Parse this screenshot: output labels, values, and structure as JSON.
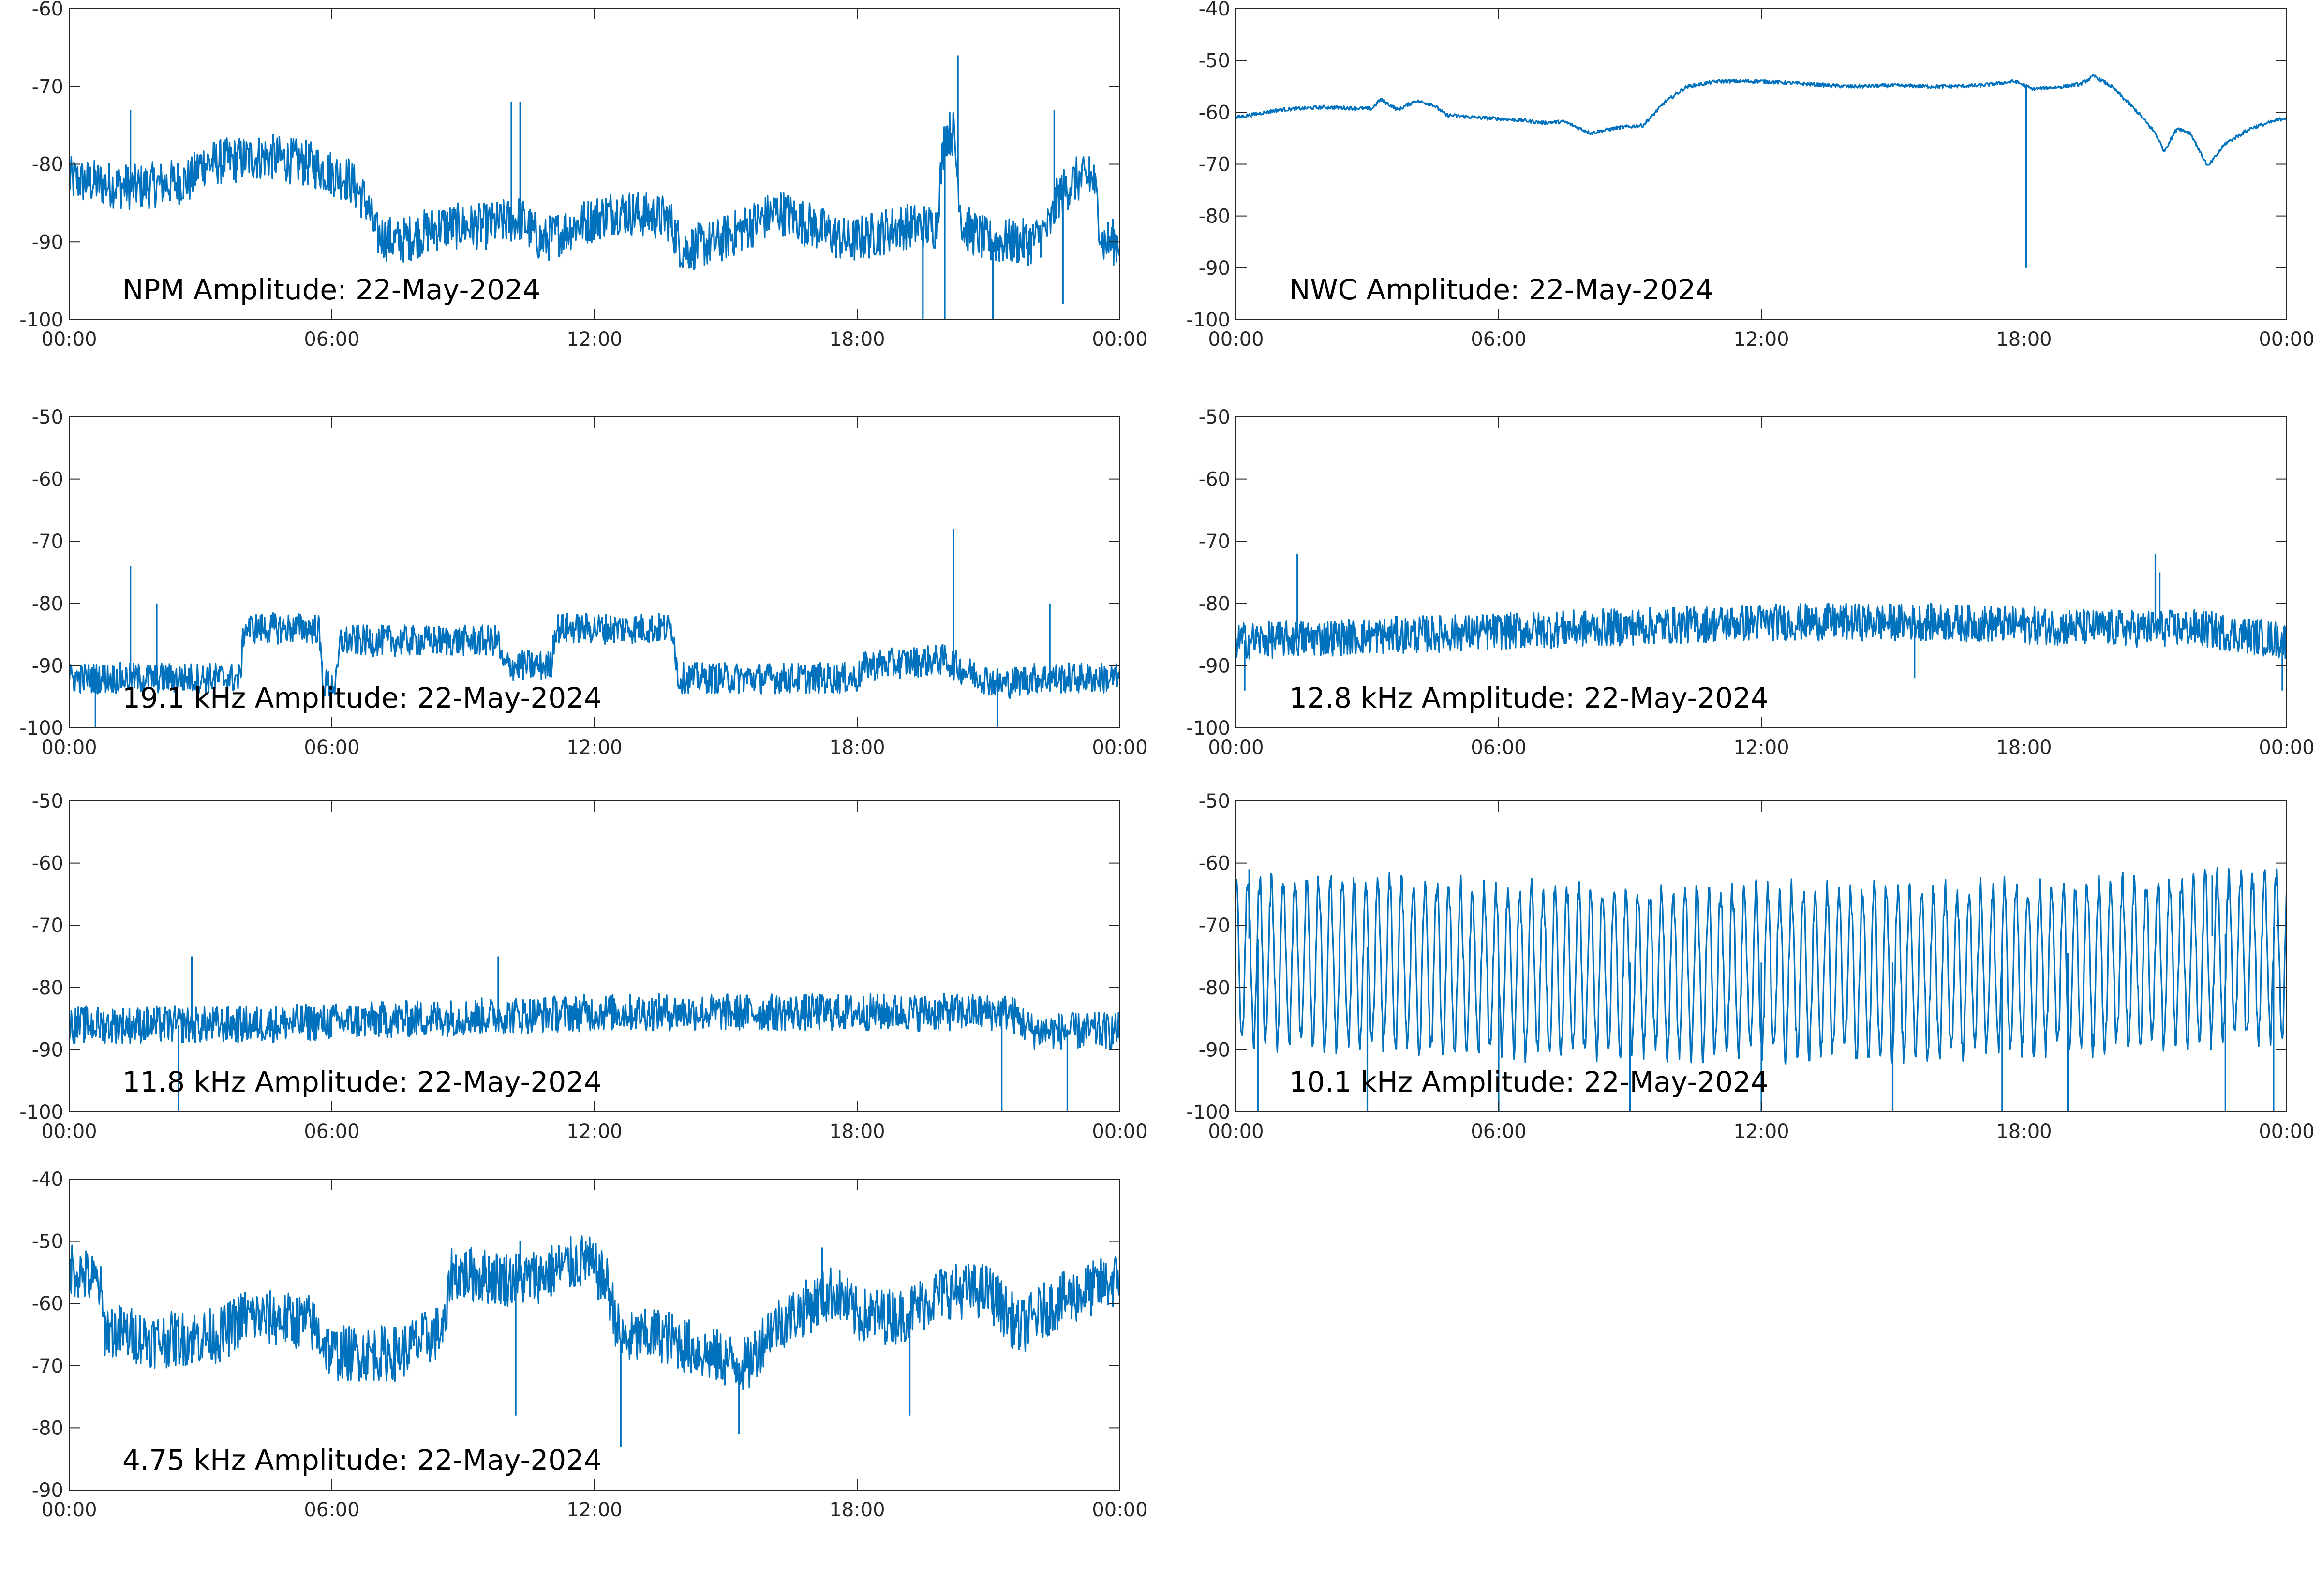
{
  "figure": {
    "series_color": "#0072BD",
    "axis_color": "#262626"
  },
  "chart_data": [
    {
      "type": "line",
      "title": "NPM Amplitude: 22-May-2024",
      "xlabel": "",
      "ylabel": "",
      "xticks": [
        "00:00",
        "06:00",
        "12:00",
        "18:00",
        "00:00"
      ],
      "yticks": [
        "-60",
        "-70",
        "-80",
        "-90",
        "-100"
      ],
      "ylim": [
        -100,
        -60
      ],
      "xlim_hours": [
        0,
        24
      ],
      "grid": false,
      "title_placement": "bottom-left inside axes",
      "series": [
        {
          "noise": 3.0,
          "spikes": [
            [
              1.4,
              -73
            ],
            [
              10.1,
              -72
            ],
            [
              10.3,
              -72
            ],
            [
              20.1,
              -77
            ],
            [
              20.3,
              -66
            ],
            [
              22.5,
              -73
            ],
            [
              23.3,
              -79
            ]
          ],
          "dips": [
            [
              19.5,
              -100
            ],
            [
              20.0,
              -100
            ],
            [
              21.1,
              -100
            ],
            [
              22.7,
              -98
            ]
          ],
          "points": [
            {
              "x": 0,
              "y": -82
            },
            {
              "x": 1.5,
              "y": -83
            },
            {
              "x": 2.8,
              "y": -82
            },
            {
              "x": 3.0,
              "y": -80
            },
            {
              "x": 4.5,
              "y": -79
            },
            {
              "x": 5.5,
              "y": -80
            },
            {
              "x": 6.4,
              "y": -82
            },
            {
              "x": 6.8,
              "y": -85
            },
            {
              "x": 7.0,
              "y": -89
            },
            {
              "x": 7.5,
              "y": -90
            },
            {
              "x": 8.5,
              "y": -88
            },
            {
              "x": 9.5,
              "y": -88
            },
            {
              "x": 10.3,
              "y": -87
            },
            {
              "x": 10.8,
              "y": -90
            },
            {
              "x": 11.5,
              "y": -88
            },
            {
              "x": 12.5,
              "y": -86
            },
            {
              "x": 13.7,
              "y": -87
            },
            {
              "x": 14.0,
              "y": -91
            },
            {
              "x": 14.8,
              "y": -90
            },
            {
              "x": 15.5,
              "y": -88
            },
            {
              "x": 16.2,
              "y": -86
            },
            {
              "x": 17.0,
              "y": -88
            },
            {
              "x": 17.8,
              "y": -90
            },
            {
              "x": 19.0,
              "y": -88
            },
            {
              "x": 19.8,
              "y": -88
            },
            {
              "x": 20.0,
              "y": -76
            },
            {
              "x": 20.2,
              "y": -76
            },
            {
              "x": 20.4,
              "y": -88
            },
            {
              "x": 21.0,
              "y": -90
            },
            {
              "x": 22.0,
              "y": -90
            },
            {
              "x": 22.4,
              "y": -88
            },
            {
              "x": 22.6,
              "y": -84
            },
            {
              "x": 23.0,
              "y": -82
            },
            {
              "x": 23.4,
              "y": -82
            },
            {
              "x": 23.6,
              "y": -90
            },
            {
              "x": 24,
              "y": -90
            }
          ]
        }
      ]
    },
    {
      "type": "line",
      "title": "NWC Amplitude: 22-May-2024",
      "xlabel": "",
      "ylabel": "",
      "xticks": [
        "00:00",
        "06:00",
        "12:00",
        "18:00",
        "00:00"
      ],
      "yticks": [
        "-40",
        "-50",
        "-60",
        "-70",
        "-80",
        "-90",
        "-100"
      ],
      "ylim": [
        -100,
        -40
      ],
      "xlim_hours": [
        0,
        24
      ],
      "grid": false,
      "title_placement": "bottom-left inside axes",
      "series": [
        {
          "noise": 0.35,
          "spikes": [],
          "dips": [
            [
              18.05,
              -90
            ]
          ],
          "points": [
            {
              "x": 0,
              "y": -61
            },
            {
              "x": 1.0,
              "y": -59.5
            },
            {
              "x": 2.0,
              "y": -59
            },
            {
              "x": 3.1,
              "y": -59.3
            },
            {
              "x": 3.3,
              "y": -57.5
            },
            {
              "x": 3.7,
              "y": -59.5
            },
            {
              "x": 4.1,
              "y": -57.8
            },
            {
              "x": 4.5,
              "y": -58.5
            },
            {
              "x": 4.8,
              "y": -60.5
            },
            {
              "x": 5.5,
              "y": -61
            },
            {
              "x": 6.5,
              "y": -61.5
            },
            {
              "x": 7.0,
              "y": -62
            },
            {
              "x": 7.5,
              "y": -61.8
            },
            {
              "x": 8.1,
              "y": -64
            },
            {
              "x": 8.7,
              "y": -63
            },
            {
              "x": 9.3,
              "y": -62.5
            },
            {
              "x": 9.8,
              "y": -58
            },
            {
              "x": 10.3,
              "y": -55
            },
            {
              "x": 11.0,
              "y": -54
            },
            {
              "x": 12.0,
              "y": -54
            },
            {
              "x": 13.0,
              "y": -54.5
            },
            {
              "x": 14.0,
              "y": -55
            },
            {
              "x": 15.0,
              "y": -54.8
            },
            {
              "x": 16.0,
              "y": -55
            },
            {
              "x": 17.0,
              "y": -54.8
            },
            {
              "x": 17.8,
              "y": -54
            },
            {
              "x": 18.2,
              "y": -55.5
            },
            {
              "x": 18.9,
              "y": -55
            },
            {
              "x": 19.3,
              "y": -54.5
            },
            {
              "x": 19.6,
              "y": -53
            },
            {
              "x": 20.0,
              "y": -55
            },
            {
              "x": 20.6,
              "y": -60
            },
            {
              "x": 21.0,
              "y": -64
            },
            {
              "x": 21.2,
              "y": -67.5
            },
            {
              "x": 21.5,
              "y": -63
            },
            {
              "x": 21.8,
              "y": -64
            },
            {
              "x": 22.2,
              "y": -70.5
            },
            {
              "x": 22.6,
              "y": -66
            },
            {
              "x": 23.2,
              "y": -63
            },
            {
              "x": 24,
              "y": -61
            }
          ]
        }
      ]
    },
    {
      "type": "line",
      "title": "19.1 kHz Amplitude: 22-May-2024",
      "xlabel": "",
      "ylabel": "",
      "xticks": [
        "00:00",
        "06:00",
        "12:00",
        "18:00",
        "00:00"
      ],
      "yticks": [
        "-50",
        "-60",
        "-70",
        "-80",
        "-90",
        "-100"
      ],
      "ylim": [
        -100,
        -50
      ],
      "xlim_hours": [
        0,
        24
      ],
      "grid": false,
      "title_placement": "bottom-left inside axes",
      "series": [
        {
          "noise": 2.5,
          "spikes": [
            [
              1.4,
              -74
            ],
            [
              2.0,
              -80
            ],
            [
              4.7,
              -82
            ],
            [
              20.2,
              -68
            ],
            [
              22.4,
              -80
            ]
          ],
          "dips": [
            [
              0.6,
              -100
            ],
            [
              21.2,
              -100
            ]
          ],
          "points": [
            {
              "x": 0,
              "y": -92
            },
            {
              "x": 3.9,
              "y": -92
            },
            {
              "x": 4.0,
              "y": -84
            },
            {
              "x": 5.7,
              "y": -84
            },
            {
              "x": 5.8,
              "y": -93
            },
            {
              "x": 6.1,
              "y": -93
            },
            {
              "x": 6.2,
              "y": -86
            },
            {
              "x": 9.8,
              "y": -86
            },
            {
              "x": 9.9,
              "y": -90
            },
            {
              "x": 11.0,
              "y": -90
            },
            {
              "x": 11.1,
              "y": -84
            },
            {
              "x": 13.8,
              "y": -84
            },
            {
              "x": 13.9,
              "y": -92
            },
            {
              "x": 18.0,
              "y": -92
            },
            {
              "x": 18.2,
              "y": -90
            },
            {
              "x": 20.0,
              "y": -89
            },
            {
              "x": 20.5,
              "y": -91
            },
            {
              "x": 21.3,
              "y": -93
            },
            {
              "x": 22.0,
              "y": -92
            },
            {
              "x": 24,
              "y": -92
            }
          ]
        }
      ]
    },
    {
      "type": "line",
      "title": "12.8 kHz Amplitude: 22-May-2024",
      "xlabel": "",
      "ylabel": "",
      "xticks": [
        "00:00",
        "06:00",
        "12:00",
        "18:00",
        "00:00"
      ],
      "yticks": [
        "-50",
        "-60",
        "-70",
        "-80",
        "-90",
        "-100"
      ],
      "ylim": [
        -100,
        -50
      ],
      "xlim_hours": [
        0,
        24
      ],
      "grid": false,
      "title_placement": "bottom-left inside axes",
      "series": [
        {
          "noise": 3.0,
          "spikes": [
            [
              1.4,
              -72
            ],
            [
              21.0,
              -72
            ],
            [
              21.1,
              -75
            ]
          ],
          "dips": [
            [
              0.2,
              -94
            ],
            [
              15.5,
              -92
            ],
            [
              23.9,
              -94
            ]
          ],
          "points": [
            {
              "x": 0,
              "y": -86
            },
            {
              "x": 4.0,
              "y": -85
            },
            {
              "x": 8.0,
              "y": -84
            },
            {
              "x": 12.0,
              "y": -83
            },
            {
              "x": 16.0,
              "y": -83
            },
            {
              "x": 20.0,
              "y": -84
            },
            {
              "x": 22.0,
              "y": -84
            },
            {
              "x": 24,
              "y": -86
            }
          ]
        }
      ]
    },
    {
      "type": "line",
      "title": "11.8 kHz Amplitude: 22-May-2024",
      "xlabel": "",
      "ylabel": "",
      "xticks": [
        "00:00",
        "06:00",
        "12:00",
        "18:00",
        "00:00"
      ],
      "yticks": [
        "-50",
        "-60",
        "-70",
        "-80",
        "-90",
        "-100"
      ],
      "ylim": [
        -100,
        -50
      ],
      "xlim_hours": [
        0,
        24
      ],
      "grid": false,
      "title_placement": "bottom-left inside axes",
      "series": [
        {
          "noise": 3.0,
          "spikes": [
            [
              2.8,
              -75
            ],
            [
              9.8,
              -75
            ]
          ],
          "dips": [
            [
              2.5,
              -100
            ],
            [
              21.3,
              -100
            ],
            [
              22.8,
              -100
            ]
          ],
          "points": [
            {
              "x": 0,
              "y": -86
            },
            {
              "x": 4.0,
              "y": -86
            },
            {
              "x": 8.0,
              "y": -85
            },
            {
              "x": 12.0,
              "y": -84
            },
            {
              "x": 16.0,
              "y": -84
            },
            {
              "x": 20.0,
              "y": -84
            },
            {
              "x": 21.5,
              "y": -84
            },
            {
              "x": 22.0,
              "y": -87
            },
            {
              "x": 24,
              "y": -87
            }
          ]
        }
      ]
    },
    {
      "type": "line",
      "title": "10.1 kHz Amplitude: 22-May-2024",
      "xlabel": "",
      "ylabel": "",
      "xticks": [
        "00:00",
        "06:00",
        "12:00",
        "18:00",
        "00:00"
      ],
      "yticks": [
        "-50",
        "-60",
        "-70",
        "-80",
        "-90",
        "-100"
      ],
      "ylim": [
        -100,
        -50
      ],
      "xlim_hours": [
        0,
        24
      ],
      "grid": false,
      "title_placement": "bottom-left inside axes",
      "series": [
        {
          "noise": 2.0,
          "oscillation": {
            "period_hours": 0.27,
            "top": -66,
            "bottom": -92
          },
          "spikes": [
            [
              0.3,
              -61
            ],
            [
              22.3,
              -62
            ]
          ],
          "dips": [
            [
              0.5,
              -100
            ],
            [
              3.0,
              -100
            ],
            [
              6.0,
              -100
            ],
            [
              9.0,
              -100
            ],
            [
              12.0,
              -100
            ],
            [
              15.0,
              -100
            ],
            [
              17.5,
              -100
            ],
            [
              19.0,
              -100
            ],
            [
              22.6,
              -100
            ],
            [
              23.7,
              -100
            ]
          ],
          "points": [
            {
              "x": 0,
              "y": -72
            },
            {
              "x": 4.0,
              "y": -74
            },
            {
              "x": 8.0,
              "y": -76
            },
            {
              "x": 12.0,
              "y": -76
            },
            {
              "x": 16.0,
              "y": -76
            },
            {
              "x": 20.0,
              "y": -74
            },
            {
              "x": 22.0,
              "y": -72
            },
            {
              "x": 24,
              "y": -70
            }
          ]
        }
      ]
    },
    {
      "type": "line",
      "title": "4.75 kHz Amplitude: 22-May-2024",
      "xlabel": "",
      "ylabel": "",
      "xticks": [
        "00:00",
        "06:00",
        "12:00",
        "18:00",
        "00:00"
      ],
      "yticks": [
        "-40",
        "-50",
        "-60",
        "-70",
        "-80",
        "-90"
      ],
      "ylim": [
        -90,
        -40
      ],
      "xlim_hours": [
        0,
        24
      ],
      "grid": false,
      "title_placement": "bottom-left inside axes",
      "series": [
        {
          "noise": 4.5,
          "spikes": [
            [
              10.3,
              -50
            ],
            [
              11.8,
              -50
            ],
            [
              17.2,
              -51
            ]
          ],
          "dips": [
            [
              10.2,
              -78
            ],
            [
              12.6,
              -83
            ],
            [
              15.3,
              -81
            ],
            [
              19.2,
              -78
            ]
          ],
          "points": [
            {
              "x": 0,
              "y": -54
            },
            {
              "x": 0.7,
              "y": -57
            },
            {
              "x": 0.8,
              "y": -64
            },
            {
              "x": 2.0,
              "y": -66
            },
            {
              "x": 3.5,
              "y": -65
            },
            {
              "x": 4.0,
              "y": -62
            },
            {
              "x": 5.5,
              "y": -63
            },
            {
              "x": 6.0,
              "y": -68
            },
            {
              "x": 7.5,
              "y": -68
            },
            {
              "x": 8.6,
              "y": -64
            },
            {
              "x": 8.7,
              "y": -55
            },
            {
              "x": 10.0,
              "y": -56
            },
            {
              "x": 10.5,
              "y": -56
            },
            {
              "x": 11.8,
              "y": -53
            },
            {
              "x": 12.3,
              "y": -57
            },
            {
              "x": 12.6,
              "y": -66
            },
            {
              "x": 13.5,
              "y": -65
            },
            {
              "x": 14.5,
              "y": -68
            },
            {
              "x": 15.5,
              "y": -70
            },
            {
              "x": 16.0,
              "y": -64
            },
            {
              "x": 17.0,
              "y": -60
            },
            {
              "x": 17.5,
              "y": -58
            },
            {
              "x": 18.0,
              "y": -62
            },
            {
              "x": 19.0,
              "y": -62
            },
            {
              "x": 20.0,
              "y": -58
            },
            {
              "x": 21.0,
              "y": -58
            },
            {
              "x": 21.7,
              "y": -64
            },
            {
              "x": 22.5,
              "y": -60
            },
            {
              "x": 24,
              "y": -56
            }
          ]
        }
      ]
    }
  ]
}
